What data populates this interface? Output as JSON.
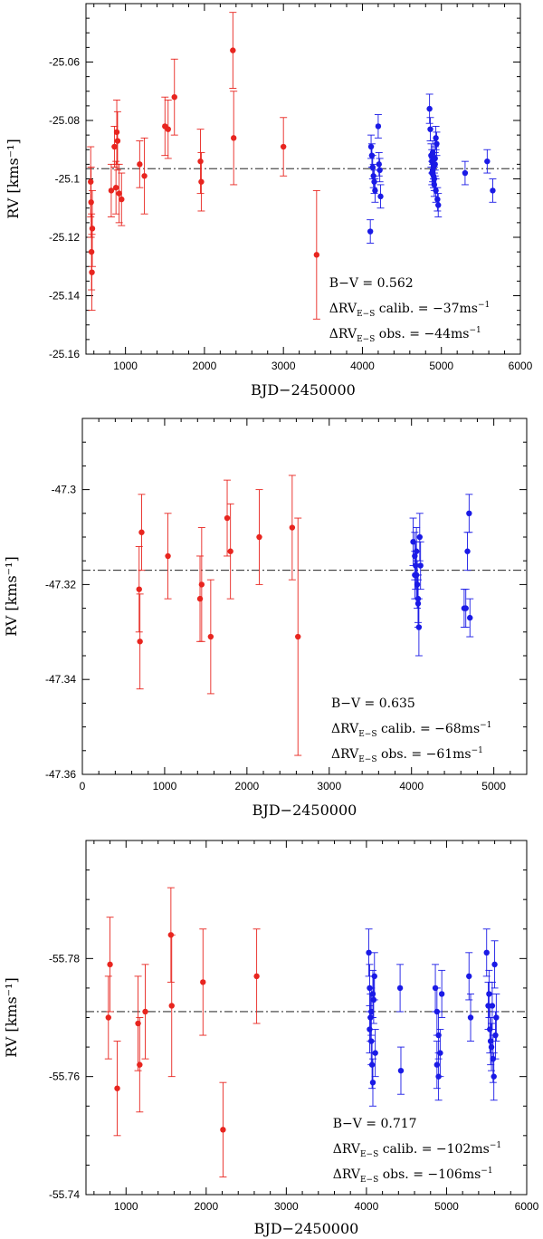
{
  "chart_data": [
    {
      "type": "scatter",
      "xlabel": "BJD−2450000",
      "ylabel": "RV [kms⁻¹]",
      "xlim": [
        500,
        6000
      ],
      "ylim": [
        -25.16,
        -25.04
      ],
      "xticks": [
        1000,
        2000,
        3000,
        4000,
        5000,
        6000
      ],
      "yticks": [
        -25.16,
        -25.14,
        -25.12,
        -25.1,
        -25.08,
        -25.06
      ],
      "ytick_labels": [
        "-25.16",
        "-25.14",
        "-25.12",
        "-25.1",
        "-25.08",
        "-25.06"
      ],
      "xtick_labels": [
        "1000",
        "2000",
        "3000",
        "4000",
        "5000",
        "6000"
      ],
      "mean_rv": -25.0965,
      "annotations": {
        "bv_label": "B−V = ",
        "bv_value": "0.562",
        "calib_prefix": "ΔRV",
        "calib_sub": "E−S",
        "calib_text": " calib. = −37ms",
        "obs_prefix": "ΔRV",
        "obs_sub": "E−S",
        "obs_text": " obs. = −44ms",
        "unit_sup": "−1"
      },
      "series": [
        {
          "name": "early",
          "color": "#e8251f",
          "x": [
            560,
            565,
            570,
            575,
            580,
            820,
            860,
            880,
            890,
            900,
            920,
            950,
            1180,
            1240,
            1500,
            1540,
            1620,
            1950,
            1960,
            2360,
            2370,
            3000,
            3420
          ],
          "y": [
            -25.101,
            -25.108,
            -25.125,
            -25.132,
            -25.117,
            -25.104,
            -25.089,
            -25.103,
            -25.084,
            -25.087,
            -25.105,
            -25.107,
            -25.095,
            -25.099,
            -25.082,
            -25.083,
            -25.072,
            -25.094,
            -25.101,
            -25.056,
            -25.086,
            -25.089,
            -25.126
          ],
          "err": [
            0.012,
            0.012,
            0.013,
            0.013,
            0.013,
            0.009,
            0.007,
            0.009,
            0.011,
            0.01,
            0.01,
            0.009,
            0.008,
            0.013,
            0.01,
            0.01,
            0.013,
            0.011,
            0.01,
            0.013,
            0.016,
            0.01,
            0.022
          ]
        },
        {
          "name": "late",
          "color": "#1a1ae6",
          "x": [
            4100,
            4110,
            4120,
            4130,
            4140,
            4150,
            4160,
            4200,
            4210,
            4220,
            4230,
            4850,
            4860,
            4870,
            4880,
            4890,
            4900,
            4910,
            4920,
            4930,
            4940,
            4950,
            4960,
            4880,
            4890,
            4900,
            4910,
            4920,
            4930,
            5300,
            5580,
            5650
          ],
          "y": [
            -25.118,
            -25.089,
            -25.092,
            -25.096,
            -25.099,
            -25.101,
            -25.104,
            -25.082,
            -25.095,
            -25.097,
            -25.106,
            -25.076,
            -25.083,
            -25.092,
            -25.094,
            -25.097,
            -25.099,
            -25.102,
            -25.095,
            -25.086,
            -25.088,
            -25.107,
            -25.109,
            -25.098,
            -25.091,
            -25.096,
            -25.1,
            -25.093,
            -25.104,
            -25.098,
            -25.094,
            -25.104
          ],
          "err": [
            0.004,
            0.004,
            0.004,
            0.004,
            0.004,
            0.004,
            0.004,
            0.004,
            0.004,
            0.004,
            0.004,
            0.005,
            0.004,
            0.004,
            0.004,
            0.004,
            0.004,
            0.004,
            0.004,
            0.004,
            0.004,
            0.004,
            0.004,
            0.004,
            0.004,
            0.004,
            0.004,
            0.004,
            0.004,
            0.004,
            0.004,
            0.004
          ]
        }
      ]
    },
    {
      "type": "scatter",
      "xlabel": "BJD−2450000",
      "ylabel": "RV [kms⁻¹]",
      "xlim": [
        0,
        5400
      ],
      "ylim": [
        -47.36,
        -47.285
      ],
      "xticks": [
        0,
        1000,
        2000,
        3000,
        4000,
        5000
      ],
      "yticks": [
        -47.36,
        -47.34,
        -47.32,
        -47.3
      ],
      "ytick_labels": [
        "-47.36",
        "-47.34",
        "-47.32",
        "-47.3"
      ],
      "xtick_labels": [
        "0",
        "1000",
        "2000",
        "3000",
        "4000",
        "5000"
      ],
      "mean_rv": -47.317,
      "annotations": {
        "bv_label": "B−V = ",
        "bv_value": "0.635",
        "calib_prefix": "ΔRV",
        "calib_sub": "E−S",
        "calib_text": " calib. = −68ms",
        "obs_prefix": "ΔRV",
        "obs_sub": "E−S",
        "obs_text": " obs. = −61ms",
        "unit_sup": "−1"
      },
      "series": [
        {
          "name": "early",
          "color": "#e8251f",
          "x": [
            690,
            700,
            720,
            1040,
            1430,
            1450,
            1560,
            1760,
            1800,
            2150,
            2550,
            2620
          ],
          "y": [
            -47.321,
            -47.332,
            -47.309,
            -47.314,
            -47.323,
            -47.32,
            -47.331,
            -47.306,
            -47.313,
            -47.31,
            -47.308,
            -47.331
          ],
          "err": [
            0.009,
            0.01,
            0.008,
            0.009,
            0.009,
            0.012,
            0.012,
            0.008,
            0.01,
            0.01,
            0.011,
            0.025
          ]
        },
        {
          "name": "late",
          "color": "#1a1ae6",
          "x": [
            4020,
            4040,
            4050,
            4060,
            4070,
            4080,
            4090,
            4100,
            4110,
            4040,
            4060,
            4080,
            4640,
            4660,
            4680,
            4700,
            4710
          ],
          "y": [
            -47.311,
            -47.314,
            -47.316,
            -47.318,
            -47.32,
            -47.323,
            -47.329,
            -47.31,
            -47.316,
            -47.318,
            -47.313,
            -47.324,
            -47.325,
            -47.325,
            -47.313,
            -47.305,
            -47.327
          ],
          "err": [
            0.005,
            0.005,
            0.005,
            0.005,
            0.005,
            0.005,
            0.006,
            0.005,
            0.005,
            0.005,
            0.005,
            0.005,
            0.004,
            0.004,
            0.004,
            0.004,
            0.004
          ]
        }
      ]
    },
    {
      "type": "scatter",
      "xlabel": "BJD−2450000",
      "ylabel": "RV [kms⁻¹]",
      "xlim": [
        500,
        6000
      ],
      "ylim": [
        -55.74,
        -55.8
      ],
      "xticks": [
        1000,
        2000,
        3000,
        4000,
        5000,
        6000
      ],
      "yticks": [
        -55.74,
        -55.76,
        -55.78
      ],
      "ytick_labels": [
        "-55.74",
        "-55.76",
        "-55.78"
      ],
      "xtick_labels": [
        "1000",
        "2000",
        "3000",
        "4000",
        "5000",
        "6000"
      ],
      "mean_rv": -55.771,
      "annotations": {
        "bv_label": "B−V = ",
        "bv_value": "0.717",
        "calib_prefix": "ΔRV",
        "calib_sub": "E−S",
        "calib_text": " calib. = −102ms",
        "obs_prefix": "ΔRV",
        "obs_sub": "E−S",
        "obs_text": " obs. = −106ms",
        "unit_sup": "−1"
      },
      "series": [
        {
          "name": "early",
          "color": "#e8251f",
          "x": [
            780,
            800,
            890,
            1150,
            1170,
            1240,
            1560,
            1570,
            1960,
            2210,
            2630
          ],
          "y": [
            -55.77,
            -55.779,
            -55.758,
            -55.769,
            -55.762,
            -55.771,
            -55.784,
            -55.772,
            -55.776,
            -55.751,
            -55.777
          ],
          "err": [
            0.007,
            0.008,
            0.008,
            0.008,
            0.008,
            0.008,
            0.008,
            0.012,
            0.009,
            0.008,
            0.008
          ]
        },
        {
          "name": "late",
          "color": "#1a1ae6",
          "x": [
            4030,
            4040,
            4050,
            4060,
            4070,
            4080,
            4090,
            4100,
            4110,
            4040,
            4060,
            4080,
            4420,
            4430,
            4860,
            4880,
            4900,
            4920,
            4940,
            4880,
            4900,
            5280,
            5300,
            5500,
            5520,
            5540,
            5560,
            5580,
            5600,
            5620,
            5530,
            5550,
            5570,
            5590,
            5610
          ],
          "y": [
            -55.781,
            -55.775,
            -55.77,
            -55.766,
            -55.762,
            -55.759,
            -55.773,
            -55.777,
            -55.764,
            -55.768,
            -55.771,
            -55.774,
            -55.775,
            -55.761,
            -55.775,
            -55.771,
            -55.767,
            -55.764,
            -55.774,
            -55.762,
            -55.76,
            -55.777,
            -55.77,
            -55.781,
            -55.772,
            -55.768,
            -55.765,
            -55.763,
            -55.779,
            -55.77,
            -55.774,
            -55.766,
            -55.772,
            -55.76,
            -55.767
          ],
          "err": [
            0.004,
            0.004,
            0.004,
            0.004,
            0.004,
            0.004,
            0.004,
            0.004,
            0.004,
            0.004,
            0.004,
            0.004,
            0.004,
            0.004,
            0.004,
            0.004,
            0.004,
            0.004,
            0.004,
            0.004,
            0.004,
            0.004,
            0.004,
            0.004,
            0.004,
            0.004,
            0.004,
            0.004,
            0.004,
            0.004,
            0.004,
            0.004,
            0.004,
            0.004,
            0.004
          ]
        }
      ]
    }
  ]
}
